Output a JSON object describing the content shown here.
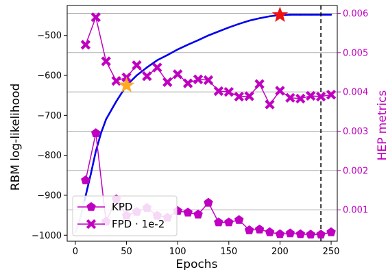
{
  "chart_data": {
    "type": "line",
    "title": "",
    "xlabel": "Epochs",
    "ylabel_left": "RBM log-likelihood",
    "ylabel_right": "HEP metrics",
    "xlim": [
      -8,
      256
    ],
    "ylim_left": [
      -1015,
      -425
    ],
    "ylim_right": [
      0.0002,
      0.0062
    ],
    "xticks": [
      0,
      50,
      100,
      150,
      200,
      250
    ],
    "yticks_left": [
      -1000,
      -900,
      -800,
      -700,
      -600,
      -500
    ],
    "yticks_right": [
      0.001,
      0.002,
      0.003,
      0.004,
      0.005,
      0.006
    ],
    "grid": "horizontal",
    "legend_position": "lower-left",
    "colors": {
      "loglik": "#0000ee",
      "loglik_start": "#aaaaee",
      "hep": "#c000c0",
      "right_axis": "#c000c0",
      "star_red": "#ee1111",
      "star_orange": "#ffaa22",
      "vline": "#000000",
      "grid": "#b0b0b0"
    },
    "loglik_curve": {
      "x": [
        0,
        3,
        6,
        9,
        12,
        15,
        20,
        25,
        30,
        40,
        50,
        60,
        70,
        80,
        90,
        100,
        110,
        120,
        130,
        140,
        150,
        160,
        170,
        180,
        190,
        200,
        210,
        220,
        230,
        240,
        250
      ],
      "y": [
        -992,
        -972,
        -945,
        -913,
        -880,
        -848,
        -790,
        -745,
        -710,
        -665,
        -625,
        -600,
        -580,
        -562,
        -549,
        -535,
        -523,
        -512,
        -500,
        -490,
        -480,
        -471,
        -463,
        -457,
        -452,
        -449,
        -448,
        -448,
        -448,
        -448,
        -448
      ]
    },
    "vline_x": 240,
    "markers": [
      {
        "name": "star-orange",
        "x": 50,
        "y": -625
      },
      {
        "name": "star-red",
        "x": 200,
        "y": -449
      }
    ],
    "series": [
      {
        "name": "KPD",
        "marker": "pentagon",
        "x": [
          10,
          20,
          30,
          40,
          50,
          60,
          70,
          80,
          90,
          100,
          110,
          120,
          130,
          140,
          150,
          160,
          170,
          180,
          190,
          200,
          210,
          220,
          230,
          240,
          250
        ],
        "values": [
          0.00175,
          0.00295,
          0.0007,
          0.00127,
          0.00085,
          0.00095,
          0.00105,
          0.00085,
          0.0008,
          0.00097,
          0.00093,
          0.00088,
          0.00118,
          0.00068,
          0.00068,
          0.00074,
          0.00048,
          0.0005,
          0.00043,
          0.00038,
          0.0004,
          0.00038,
          0.00037,
          0.00037,
          0.00043
        ]
      },
      {
        "name": "FPD · 1e-2",
        "marker": "x",
        "x": [
          10,
          20,
          30,
          40,
          50,
          60,
          70,
          80,
          90,
          100,
          110,
          120,
          130,
          140,
          150,
          160,
          170,
          180,
          190,
          200,
          210,
          220,
          230,
          240,
          250
        ],
        "values": [
          0.0052,
          0.0059,
          0.00478,
          0.00428,
          0.00437,
          0.00468,
          0.0044,
          0.00462,
          0.00425,
          0.00445,
          0.00422,
          0.00432,
          0.0043,
          0.00402,
          0.004,
          0.00388,
          0.00389,
          0.0042,
          0.00368,
          0.00403,
          0.00385,
          0.00383,
          0.0039,
          0.00388,
          0.00393
        ]
      }
    ]
  }
}
